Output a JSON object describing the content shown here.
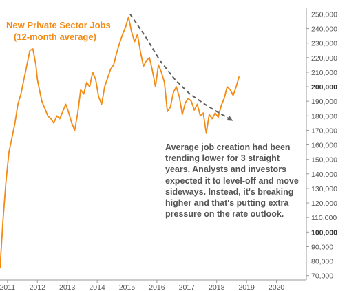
{
  "chart_data": {
    "type": "line",
    "title": "New Private Sector Jobs",
    "subtitle": "(12-month average)",
    "annotation": "Average job creation had been trending lower for 3 straight years.  Analysts and investors expected it to level-off and move sideways. Instead, it's breaking higher and that's putting extra pressure on the rate outlook.",
    "x_ticks": [
      "2011",
      "2012",
      "2013",
      "2014",
      "2015",
      "2016",
      "2017",
      "2018",
      "2019",
      "2020"
    ],
    "y_ticks": [
      "250,000",
      "240,000",
      "230,000",
      "220,000",
      "210,000",
      "200,000",
      "190,000",
      "180,000",
      "170,000",
      "160,000",
      "150,000",
      "140,000",
      "130,000",
      "120,000",
      "110,000",
      "100,000",
      "90,000",
      "80,000",
      "70,000"
    ],
    "bold_y_ticks": [
      "200,000",
      "100,000"
    ],
    "xlim": [
      2010.75,
      2021.0
    ],
    "ylim": [
      67000,
      254000
    ],
    "grid": false,
    "series": [
      {
        "color": "#f28a13",
        "x": [
          2010.75,
          2010.85,
          2010.95,
          2011.05,
          2011.15,
          2011.25,
          2011.35,
          2011.45,
          2011.55,
          2011.65,
          2011.75,
          2011.85,
          2011.95,
          2012.0,
          2012.05,
          2012.15,
          2012.25,
          2012.35,
          2012.45,
          2012.55,
          2012.65,
          2012.75,
          2012.85,
          2012.95,
          2013.05,
          2013.15,
          2013.25,
          2013.35,
          2013.45,
          2013.55,
          2013.65,
          2013.75,
          2013.85,
          2013.95,
          2014.05,
          2014.15,
          2014.25,
          2014.35,
          2014.45,
          2014.55,
          2014.65,
          2014.75,
          2014.85,
          2014.95,
          2015.05,
          2015.15,
          2015.25,
          2015.35,
          2015.45,
          2015.55,
          2015.65,
          2015.75,
          2015.85,
          2015.95,
          2016.05,
          2016.15,
          2016.25,
          2016.35,
          2016.45,
          2016.55,
          2016.65,
          2016.75,
          2016.85,
          2016.95,
          2017.05,
          2017.15,
          2017.25,
          2017.35,
          2017.45,
          2017.55,
          2017.65,
          2017.75,
          2017.85,
          2017.95,
          2018.05,
          2018.15,
          2018.25,
          2018.35,
          2018.45,
          2018.55,
          2018.65,
          2018.75
        ],
        "values": [
          75000,
          108000,
          135000,
          155000,
          165000,
          175000,
          188000,
          195000,
          205000,
          215000,
          225000,
          226000,
          215000,
          205000,
          200000,
          190000,
          185000,
          180000,
          178000,
          175000,
          180000,
          178000,
          183000,
          188000,
          182000,
          175000,
          170000,
          182000,
          198000,
          195000,
          203000,
          200000,
          210000,
          205000,
          193000,
          188000,
          200000,
          206000,
          212000,
          215000,
          223000,
          230000,
          236000,
          241000,
          248000,
          238000,
          231000,
          236000,
          224000,
          214000,
          218000,
          220000,
          211000,
          200000,
          215000,
          210000,
          203000,
          183000,
          186000,
          196000,
          200000,
          193000,
          181000,
          189000,
          192000,
          190000,
          184000,
          188000,
          180000,
          182000,
          168000,
          181000,
          178000,
          182000,
          179000,
          187000,
          192000,
          200000,
          198000,
          194000,
          200000,
          207000
        ]
      }
    ],
    "trend_line": {
      "color": "#606060",
      "style": "dashed",
      "x": [
        2015.1,
        2015.6,
        2016.1,
        2016.6,
        2017.1,
        2017.6,
        2018.0,
        2018.5
      ],
      "values": [
        250000,
        235000,
        218000,
        205000,
        195000,
        188000,
        183000,
        177000
      ]
    }
  }
}
